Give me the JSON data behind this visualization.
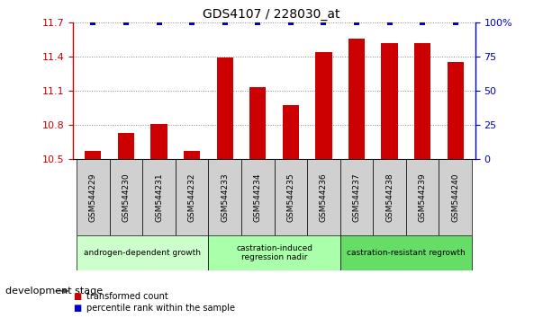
{
  "title": "GDS4107 / 228030_at",
  "samples": [
    "GSM544229",
    "GSM544230",
    "GSM544231",
    "GSM544232",
    "GSM544233",
    "GSM544234",
    "GSM544235",
    "GSM544236",
    "GSM544237",
    "GSM544238",
    "GSM544239",
    "GSM544240"
  ],
  "transformed_counts": [
    10.57,
    10.73,
    10.81,
    10.57,
    11.39,
    11.13,
    10.97,
    11.44,
    11.56,
    11.52,
    11.52,
    11.35
  ],
  "percentile_ranks": [
    100,
    100,
    100,
    100,
    100,
    100,
    100,
    100,
    100,
    100,
    100,
    100
  ],
  "ylim_left": [
    10.5,
    11.7
  ],
  "ylim_right": [
    0,
    100
  ],
  "yticks_left": [
    10.5,
    10.8,
    11.1,
    11.4,
    11.7
  ],
  "yticks_right": [
    0,
    25,
    50,
    75,
    100
  ],
  "bar_color": "#cc0000",
  "dot_color": "#0000cc",
  "stage_groups": [
    {
      "label": "androgen-dependent growth",
      "start": 0,
      "end": 3,
      "color": "#ccffcc"
    },
    {
      "label": "castration-induced\nregression nadir",
      "start": 4,
      "end": 7,
      "color": "#aaffaa"
    },
    {
      "label": "castration-resistant regrowth",
      "start": 8,
      "end": 11,
      "color": "#66dd66"
    }
  ],
  "dev_stage_label": "development stage",
  "legend_bar_label": "transformed count",
  "legend_dot_label": "percentile rank within the sample",
  "grid_color": "#888888",
  "background_color": "#ffffff",
  "bar_width": 0.5,
  "sample_box_color": "#d0d0d0",
  "xlim": [
    -0.6,
    11.6
  ]
}
